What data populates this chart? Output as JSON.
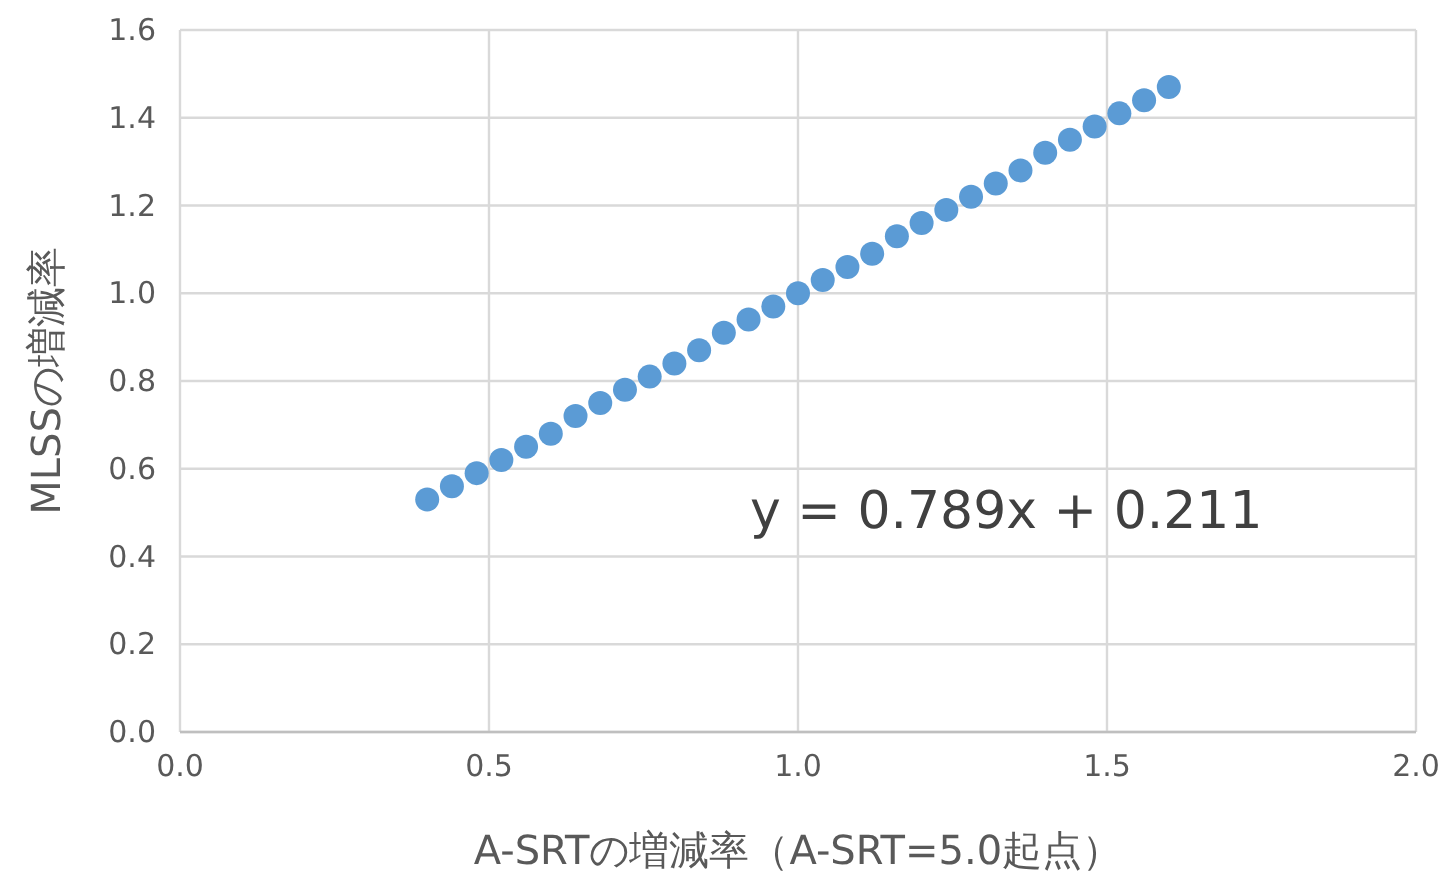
{
  "chart_data": {
    "type": "scatter",
    "xlabel": "A-SRTの増減率（A-SRT=5.0起点）",
    "ylabel": "MLSSの増減率",
    "x": [
      0.4,
      0.44,
      0.48,
      0.52,
      0.56,
      0.6,
      0.64,
      0.68,
      0.72,
      0.76,
      0.8,
      0.84,
      0.88,
      0.92,
      0.96,
      1.0,
      1.04,
      1.08,
      1.12,
      1.16,
      1.2,
      1.24,
      1.28,
      1.32,
      1.36,
      1.4,
      1.44,
      1.48,
      1.52,
      1.56,
      1.6
    ],
    "values": [
      0.53,
      0.56,
      0.59,
      0.62,
      0.65,
      0.68,
      0.72,
      0.75,
      0.78,
      0.81,
      0.84,
      0.87,
      0.91,
      0.94,
      0.97,
      1.0,
      1.03,
      1.06,
      1.09,
      1.13,
      1.16,
      1.19,
      1.22,
      1.25,
      1.28,
      1.32,
      1.35,
      1.38,
      1.41,
      1.44,
      1.47
    ],
    "color": "#5b9bd5",
    "marker": "circle",
    "grid": true,
    "xlim": [
      0,
      2
    ],
    "xticks": [
      {
        "value": 0,
        "label": "0.0"
      },
      0.5,
      {
        "value": 1,
        "label": "1.0"
      },
      1.5,
      {
        "value": 2,
        "label": "2.0"
      }
    ],
    "ylim": [
      0,
      1.6
    ],
    "yticks": [
      {
        "value": 0,
        "label": "0.0"
      },
      0.2,
      0.4,
      0.6,
      0.8,
      {
        "value": 1,
        "label": "1.0"
      },
      1.2,
      1.4,
      1.6
    ],
    "annotations": [
      "y = 0.789x + 0.211"
    ]
  }
}
